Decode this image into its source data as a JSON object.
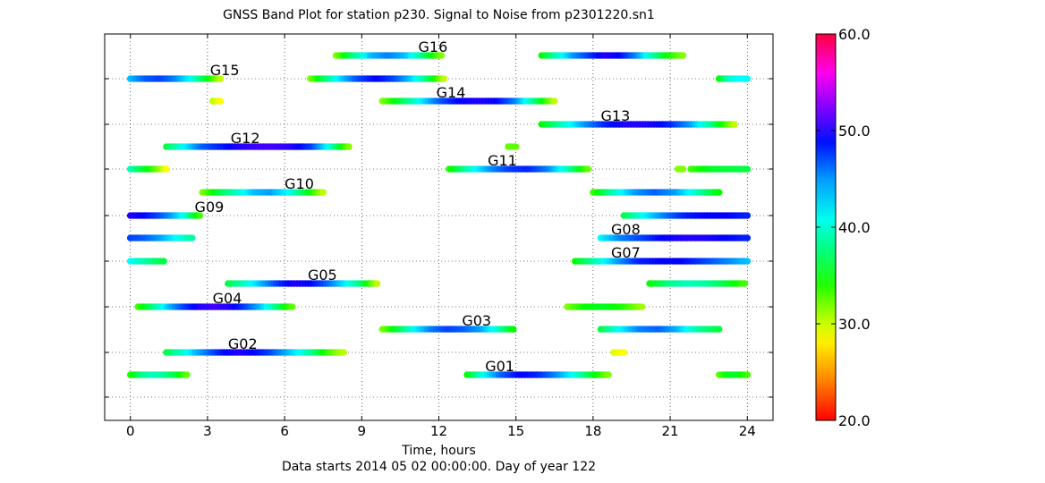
{
  "chart_data": {
    "type": "scatter",
    "title": "GNSS Band Plot for station p230.   Signal to Noise from p2301220.sn1",
    "xlabel": "Time, hours",
    "footnote": "Data starts 2014 05 02 00:00:00.  Day of year 122",
    "xlim": [
      -1,
      25
    ],
    "xticks": [
      0,
      3,
      6,
      9,
      12,
      15,
      18,
      21,
      24
    ],
    "xtick_labels": [
      "0",
      "3",
      "6",
      "9",
      "12",
      "15",
      "18",
      "21",
      "24"
    ],
    "grid": true,
    "colorbar": {
      "min": 20.0,
      "max": 60.0,
      "ticks": [
        20.0,
        30.0,
        40.0,
        50.0,
        60.0
      ],
      "tick_labels": [
        "20.0",
        "30.0",
        "40.0",
        "50.0",
        "60.0"
      ],
      "colormap": "gist_rainbow"
    },
    "bands": [
      {
        "label": "G01",
        "label_x": 13.8,
        "segments": [
          {
            "start": 0.0,
            "end": 2.2,
            "snr": [
              35,
              40,
              42,
              41,
              38,
              33
            ]
          },
          {
            "start": 13.1,
            "end": 18.6,
            "snr": [
              36,
              44,
              49,
              52,
              51,
              48,
              44,
              38,
              32
            ]
          },
          {
            "start": 22.9,
            "end": 24.0,
            "snr": [
              33,
              37,
              37,
              34
            ]
          }
        ]
      },
      {
        "label": "G02",
        "label_x": 3.8,
        "segments": [
          {
            "start": 1.4,
            "end": 8.3,
            "snr": [
              38,
              42,
              46,
              49,
              52,
              53,
              52,
              50,
              47,
              44,
              40,
              34,
              30
            ]
          },
          {
            "start": 18.8,
            "end": 19.2,
            "snr": [
              29,
              28
            ]
          }
        ]
      },
      {
        "label": "G03",
        "label_x": 12.9,
        "segments": [
          {
            "start": 9.8,
            "end": 14.9,
            "snr": [
              32,
              38,
              44,
              48,
              50,
              49,
              47,
              43,
              36
            ]
          },
          {
            "start": 18.3,
            "end": 22.9,
            "snr": [
              38,
              44,
              48,
              49,
              46,
              41,
              38
            ]
          }
        ]
      },
      {
        "label": "G04",
        "label_x": 3.2,
        "segments": [
          {
            "start": 0.3,
            "end": 6.3,
            "snr": [
              34,
              40,
              46,
              50,
              53,
              54,
              53,
              50,
              46,
              40,
              33
            ]
          },
          {
            "start": 17.0,
            "end": 19.9,
            "snr": [
              32,
              36,
              37,
              35,
              31
            ]
          }
        ]
      },
      {
        "label": "G05",
        "label_x": 6.9,
        "segments": [
          {
            "start": 3.8,
            "end": 9.6,
            "snr": [
              38,
              42,
              46,
              50,
              53,
              52,
              49,
              45,
              40,
              30
            ]
          },
          {
            "start": 20.2,
            "end": 23.9,
            "snr": [
              36,
              40,
              42,
              41,
              38,
              34
            ]
          }
        ]
      },
      {
        "label": "G07",
        "label_x": 18.7,
        "segments": [
          {
            "start": 0.0,
            "end": 1.3,
            "snr": [
              44,
              42,
              40,
              38
            ]
          },
          {
            "start": 17.3,
            "end": 24.0,
            "snr": [
              36,
              42,
              47,
              51,
              52,
              52,
              50,
              48,
              46
            ]
          }
        ]
      },
      {
        "label": "G08",
        "label_x": 18.7,
        "segments": [
          {
            "start": 0.0,
            "end": 2.4,
            "snr": [
              50,
              49,
              47,
              44,
              41
            ]
          },
          {
            "start": 18.3,
            "end": 24.0,
            "snr": [
              44,
              48,
              50,
              52,
              53,
              53,
              52,
              51
            ]
          }
        ]
      },
      {
        "label": "G09",
        "label_x": 2.5,
        "segments": [
          {
            "start": 0.0,
            "end": 2.7,
            "snr": [
              53,
              52,
              50,
              47,
              43,
              34
            ]
          },
          {
            "start": 19.2,
            "end": 24.0,
            "snr": [
              38,
              44,
              48,
              51,
              52,
              52,
              51
            ]
          }
        ]
      },
      {
        "label": "G10",
        "label_x": 6.0,
        "segments": [
          {
            "start": 2.8,
            "end": 7.5,
            "snr": [
              32,
              38,
              42,
              46,
              47,
              44,
              38,
              30
            ]
          },
          {
            "start": 18.0,
            "end": 22.9,
            "snr": [
              34,
              42,
              47,
              49,
              47,
              42,
              36
            ]
          }
        ]
      },
      {
        "label": "G11",
        "label_x": 13.9,
        "segments": [
          {
            "start": 0.0,
            "end": 1.4,
            "snr": [
              42,
              38,
              34,
              28
            ]
          },
          {
            "start": 12.4,
            "end": 17.8,
            "snr": [
              35,
              42,
              47,
              50,
              51,
              48,
              42,
              33
            ]
          },
          {
            "start": 21.3,
            "end": 21.5,
            "snr": [
              32
            ]
          },
          {
            "start": 21.8,
            "end": 24.0,
            "snr": [
              34,
              37,
              38,
              38
            ]
          }
        ]
      },
      {
        "label": "G12",
        "label_x": 3.9,
        "segments": [
          {
            "start": 1.4,
            "end": 8.5,
            "snr": [
              38,
              44,
              49,
              51,
              53,
              54,
              54,
              53,
              50,
              43,
              32
            ]
          },
          {
            "start": 14.7,
            "end": 15.0,
            "snr": [
              33,
              33
            ]
          }
        ]
      },
      {
        "label": "G13",
        "label_x": 18.3,
        "segments": [
          {
            "start": 16.0,
            "end": 23.5,
            "snr": [
              36,
              42,
              47,
              51,
              53,
              53,
              51,
              47,
              40,
              30
            ]
          }
        ]
      },
      {
        "label": "G14",
        "label_x": 11.9,
        "segments": [
          {
            "start": 3.2,
            "end": 3.5,
            "snr": [
              30,
              28
            ]
          },
          {
            "start": 9.8,
            "end": 16.5,
            "snr": [
              32,
              38,
              44,
              49,
              52,
              53,
              52,
              48,
              40,
              30
            ]
          }
        ]
      },
      {
        "label": "G15",
        "label_x": 3.1,
        "segments": [
          {
            "start": 0.0,
            "end": 3.5,
            "snr": [
              46,
              49,
              50,
              48,
              44,
              38,
              30
            ]
          },
          {
            "start": 7.0,
            "end": 12.2,
            "snr": [
              32,
              40,
              46,
              50,
              52,
              50,
              46,
              40,
              30
            ]
          },
          {
            "start": 22.9,
            "end": 24.0,
            "snr": [
              36,
              42,
              44,
              44
            ]
          }
        ]
      },
      {
        "label": "G16",
        "label_x": 11.2,
        "segments": [
          {
            "start": 8.0,
            "end": 12.1,
            "snr": [
              32,
              40,
              46,
              48,
              46,
              40,
              32
            ]
          },
          {
            "start": 16.0,
            "end": 21.5,
            "snr": [
              36,
              42,
              47,
              50,
              53,
              52,
              48,
              42,
              36,
              32
            ]
          }
        ]
      }
    ]
  }
}
